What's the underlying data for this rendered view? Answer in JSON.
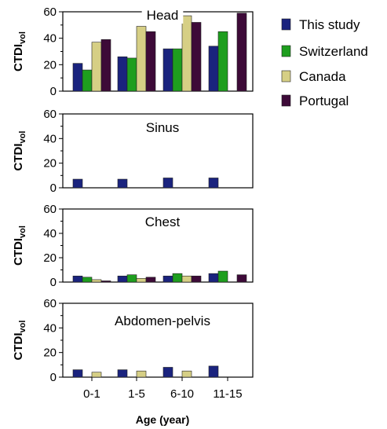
{
  "chart_data": {
    "type": "bar",
    "xlabel": "Age (year)",
    "ylabel": "CTDI",
    "ylabel_sub": "vol",
    "categories": [
      "0-1",
      "1-5",
      "6-10",
      "11-15"
    ],
    "legend": [
      {
        "name": "This study",
        "color": "#1a237e"
      },
      {
        "name": "Switzerland",
        "color": "#1e9e1e"
      },
      {
        "name": "Canada",
        "color": "#d6cf85"
      },
      {
        "name": "Portugal",
        "color": "#3d0a38"
      }
    ],
    "ylim": [
      0,
      60
    ],
    "yticks": [
      "0",
      "20",
      "40",
      "60"
    ],
    "panels": [
      {
        "title": "Head",
        "series": [
          {
            "name": "This study",
            "values": [
              21,
              26,
              32,
              34
            ]
          },
          {
            "name": "Switzerland",
            "values": [
              16,
              25,
              32,
              45
            ]
          },
          {
            "name": "Canada",
            "values": [
              37,
              49,
              57,
              null
            ]
          },
          {
            "name": "Portugal",
            "values": [
              39,
              45,
              52,
              59
            ]
          }
        ]
      },
      {
        "title": "Sinus",
        "series": [
          {
            "name": "This study",
            "values": [
              7,
              7,
              8,
              8
            ]
          },
          {
            "name": "Switzerland",
            "values": [
              null,
              null,
              null,
              null
            ]
          },
          {
            "name": "Canada",
            "values": [
              null,
              null,
              null,
              null
            ]
          },
          {
            "name": "Portugal",
            "values": [
              null,
              null,
              null,
              null
            ]
          }
        ]
      },
      {
        "title": "Chest",
        "series": [
          {
            "name": "This study",
            "values": [
              5,
              5,
              5,
              7
            ]
          },
          {
            "name": "Switzerland",
            "values": [
              4,
              6,
              7,
              9
            ]
          },
          {
            "name": "Canada",
            "values": [
              2,
              3,
              5,
              null
            ]
          },
          {
            "name": "Portugal",
            "values": [
              1,
              4,
              5,
              6
            ]
          }
        ]
      },
      {
        "title": "Abdomen-pelvis",
        "series": [
          {
            "name": "This study",
            "values": [
              6,
              6,
              8,
              9
            ]
          },
          {
            "name": "Switzerland",
            "values": [
              null,
              null,
              null,
              null
            ]
          },
          {
            "name": "Canada",
            "values": [
              4,
              5,
              5,
              null
            ]
          },
          {
            "name": "Portugal",
            "values": [
              null,
              null,
              null,
              null
            ]
          }
        ]
      }
    ]
  }
}
